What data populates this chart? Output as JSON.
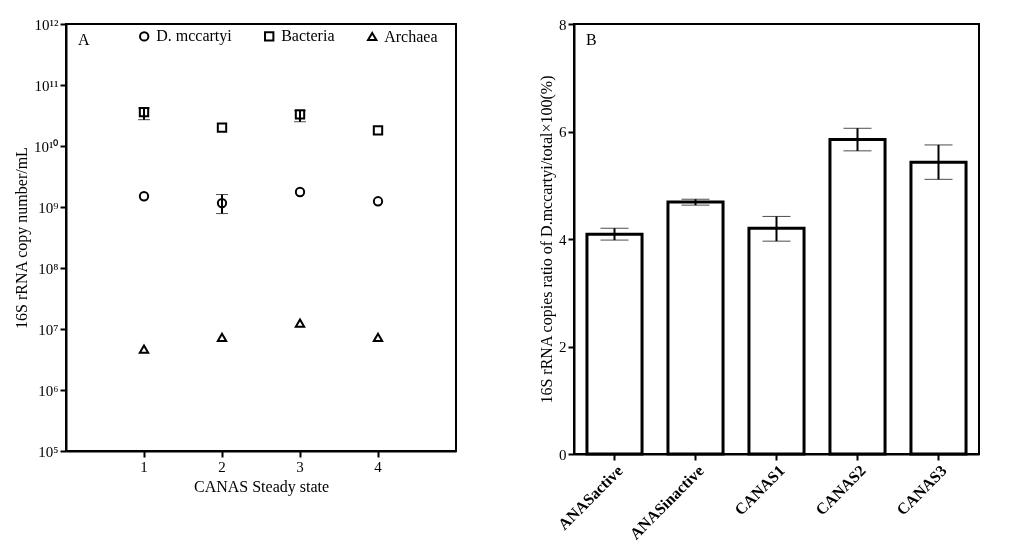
{
  "chart_data": [
    {
      "type": "scatter",
      "annotations": [
        "A"
      ],
      "xlabel": "CANAS Steady state",
      "ylabel": "16S rRNA copy number/mL",
      "categories": [
        "1",
        "2",
        "3",
        "4"
      ],
      "log": true,
      "ylim": [
        100000,
        1000000000000
      ],
      "yticks": [
        {
          "value": 100000,
          "label": "10⁵"
        },
        {
          "value": 1000000,
          "label": "10⁶"
        },
        {
          "value": 10000000,
          "label": "10⁷"
        },
        {
          "value": 100000000,
          "label": "10⁸"
        },
        {
          "value": 1000000000,
          "label": "10⁹"
        },
        {
          "value": 10000000000,
          "label": "10¹⁰"
        },
        {
          "value": 100000000000,
          "label": "10¹¹"
        },
        {
          "value": 1000000000000,
          "label": "10¹²"
        }
      ],
      "legend": "top",
      "series": [
        {
          "name": "D. mccartyi",
          "color": "#000000",
          "marker": "circle",
          "values": [
            1500000000.0,
            1160000000.0,
            1760000000.0,
            1240000000.0
          ],
          "errors": [
            null,
            [
              780000000.0,
              1600000000.0
            ],
            null,
            null
          ]
        },
        {
          "name": "Bacteria",
          "color": "#000000",
          "marker": "square",
          "values": [
            36000000000.0,
            20000000000.0,
            33000000000.0,
            18000000000.0
          ],
          "errors": [
            [
              27000000000.0,
              42000000000.0
            ],
            null,
            [
              25000000000.0,
              38000000000.0
            ],
            null
          ]
        },
        {
          "name": "Archaea",
          "color": "#000000",
          "marker": "triangle",
          "values": [
            4700000.0,
            7300000.0,
            12500000.0,
            7300000.0
          ]
        }
      ]
    },
    {
      "type": "bar",
      "annotations": [
        "B"
      ],
      "ylabel": "16S rRNA copies ratio of D.mccartyi/total×100(%)",
      "categories": [
        "ANASactive",
        "ANASinactive",
        "CANAS1",
        "CANAS2",
        "CANAS3"
      ],
      "values": [
        4.09,
        4.69,
        4.2,
        5.85,
        5.43
      ],
      "errors": [
        [
          3.98,
          4.2
        ],
        [
          4.63,
          4.74
        ],
        [
          3.96,
          4.42
        ],
        [
          5.64,
          6.06
        ],
        [
          5.11,
          5.75
        ]
      ],
      "color": "#ffffff",
      "ylim": [
        0,
        8
      ],
      "yticks": [
        0,
        2,
        4,
        6,
        8
      ]
    }
  ]
}
